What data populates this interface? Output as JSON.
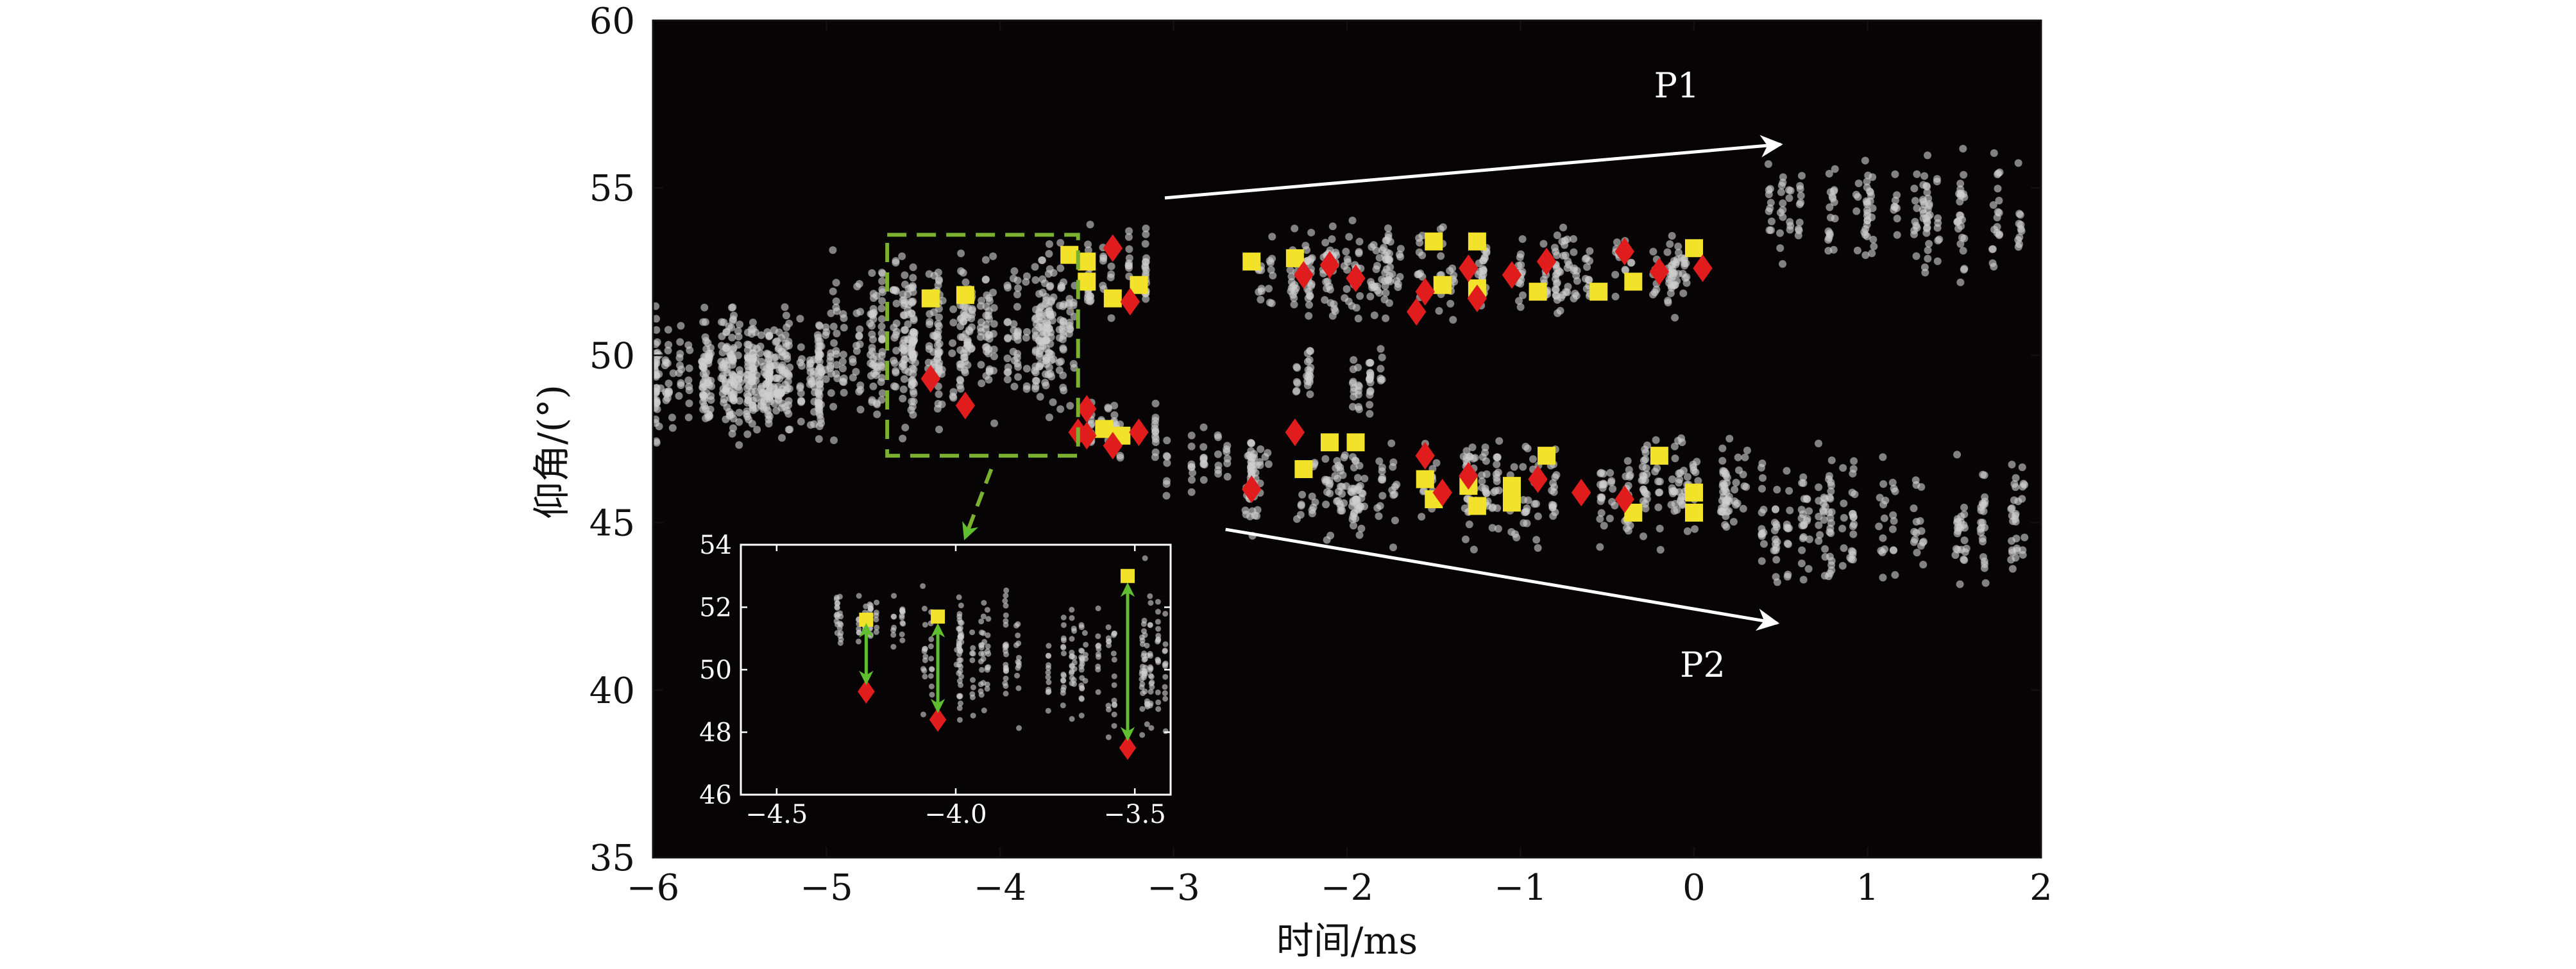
{
  "chart_data": [
    {
      "type": "scatter",
      "xlabel": "时间/ms",
      "ylabel": "仰角/(°)",
      "xlim": [
        -6,
        2
      ],
      "ylim": [
        35,
        60
      ],
      "xticks": [
        -6,
        -5,
        -4,
        -3,
        -2,
        -1,
        0,
        1,
        2
      ],
      "xtick_labels": [
        "−6",
        "−5",
        "−4",
        "−3",
        "−2",
        "−1",
        "0",
        "1",
        "2"
      ],
      "yticks": [
        35,
        40,
        45,
        50,
        55,
        60
      ],
      "ytick_labels": [
        "35",
        "40",
        "45",
        "50",
        "55",
        "60"
      ],
      "background": "#060404",
      "grid": false,
      "annotations": [
        {
          "text": "P1",
          "x": -0.1,
          "y": 57.7,
          "arrow_from": [
            -3.05,
            54.7
          ],
          "arrow_to": [
            0.5,
            56.3
          ]
        },
        {
          "text": "P2",
          "x": 0.05,
          "y": 40.4,
          "arrow_from": [
            -2.7,
            44.8
          ],
          "arrow_to": [
            0.48,
            42.0
          ]
        }
      ],
      "zoom_box": {
        "x": [
          -4.65,
          -3.55
        ],
        "y": [
          47.0,
          53.6
        ],
        "color": "#7bb030"
      },
      "series": [
        {
          "marker": "circle",
          "color": "#cfcfcf",
          "clusters": [
            {
              "x": [
                -6.0,
                -5.0
              ],
              "y": [
                46.8,
                52.0
              ],
              "count": 520
            },
            {
              "x": [
                -5.0,
                -4.2
              ],
              "y": [
                47.0,
                53.6
              ],
              "count": 320
            },
            {
              "x": [
                -4.2,
                -3.55
              ],
              "y": [
                47.5,
                53.8
              ],
              "count": 260
            },
            {
              "x": [
                -3.55,
                -3.1
              ],
              "y": [
                50.5,
                54.5
              ],
              "count": 60
            },
            {
              "x": [
                -3.55,
                -3.1
              ],
              "y": [
                46.5,
                49.0
              ],
              "count": 60
            },
            {
              "x": [
                -3.1,
                -2.5
              ],
              "y": [
                45.5,
                48.0
              ],
              "count": 50
            },
            {
              "x": [
                -2.6,
                -0.05
              ],
              "y": [
                50.8,
                54.2
              ],
              "count": 380
            },
            {
              "x": [
                -2.5,
                -1.7
              ],
              "y": [
                48.0,
                50.5
              ],
              "count": 60
            },
            {
              "x": [
                -2.6,
                0.3
              ],
              "y": [
                44.0,
                48.0
              ],
              "count": 460
            },
            {
              "x": [
                0.3,
                2.0
              ],
              "y": [
                52.0,
                56.5
              ],
              "count": 200
            },
            {
              "x": [
                0.3,
                2.0
              ],
              "y": [
                42.5,
                47.5
              ],
              "count": 240
            }
          ]
        },
        {
          "marker": "square",
          "color": "#f2e22a",
          "points": [
            [
              -4.4,
              51.7
            ],
            [
              -4.2,
              51.8
            ],
            [
              -3.6,
              53.0
            ],
            [
              -3.5,
              52.8
            ],
            [
              -3.5,
              52.2
            ],
            [
              -3.35,
              51.7
            ],
            [
              -3.2,
              52.1
            ],
            [
              -3.4,
              47.8
            ],
            [
              -3.3,
              47.6
            ],
            [
              -2.55,
              52.8
            ],
            [
              -2.3,
              52.9
            ],
            [
              -2.25,
              46.6
            ],
            [
              -2.1,
              47.4
            ],
            [
              -1.95,
              47.4
            ],
            [
              -1.5,
              53.4
            ],
            [
              -1.45,
              52.1
            ],
            [
              -1.55,
              46.3
            ],
            [
              -1.5,
              45.7
            ],
            [
              -1.25,
              53.4
            ],
            [
              -1.25,
              52.0
            ],
            [
              -1.3,
              46.1
            ],
            [
              -1.25,
              45.5
            ],
            [
              -1.05,
              46.1
            ],
            [
              -1.05,
              45.6
            ],
            [
              -0.9,
              51.9
            ],
            [
              -0.85,
              47.0
            ],
            [
              -0.55,
              51.9
            ],
            [
              -0.35,
              52.2
            ],
            [
              -0.35,
              45.3
            ],
            [
              -0.2,
              47.0
            ],
            [
              0.0,
              53.2
            ],
            [
              0.0,
              45.9
            ],
            [
              0.0,
              45.3
            ]
          ]
        },
        {
          "marker": "diamond",
          "color": "#e01c1c",
          "points": [
            [
              -4.4,
              49.3
            ],
            [
              -4.2,
              48.5
            ],
            [
              -3.35,
              53.2
            ],
            [
              -3.25,
              51.6
            ],
            [
              -3.55,
              47.7
            ],
            [
              -3.5,
              48.4
            ],
            [
              -3.5,
              47.6
            ],
            [
              -3.35,
              47.3
            ],
            [
              -3.2,
              47.7
            ],
            [
              -2.55,
              46.0
            ],
            [
              -2.3,
              47.7
            ],
            [
              -2.25,
              52.4
            ],
            [
              -2.1,
              52.7
            ],
            [
              -1.95,
              52.3
            ],
            [
              -1.6,
              51.3
            ],
            [
              -1.55,
              51.9
            ],
            [
              -1.55,
              47.0
            ],
            [
              -1.45,
              45.9
            ],
            [
              -1.3,
              52.6
            ],
            [
              -1.25,
              51.7
            ],
            [
              -1.3,
              46.4
            ],
            [
              -1.05,
              52.4
            ],
            [
              -0.85,
              52.8
            ],
            [
              -0.9,
              46.3
            ],
            [
              -0.65,
              45.9
            ],
            [
              -0.4,
              53.1
            ],
            [
              -0.4,
              45.7
            ],
            [
              -0.2,
              52.5
            ],
            [
              0.05,
              52.6
            ]
          ]
        }
      ]
    },
    {
      "type": "scatter",
      "xlim": [
        -4.6,
        -3.4
      ],
      "ylim": [
        46,
        54
      ],
      "xticks": [
        -4.5,
        -4.0,
        -3.5
      ],
      "xtick_labels": [
        "−4.5",
        "−4.0",
        "−3.5"
      ],
      "yticks": [
        46,
        48,
        50,
        52,
        54
      ],
      "ytick_labels": [
        "46",
        "48",
        "50",
        "52",
        "54"
      ],
      "background": "#060404",
      "grid": false,
      "arrows": [
        {
          "x": -4.25,
          "y": [
            49.6,
            51.4
          ],
          "color": "#5fbf2f"
        },
        {
          "x": -4.05,
          "y": [
            48.7,
            51.4
          ],
          "color": "#5fbf2f"
        },
        {
          "x": -3.52,
          "y": [
            47.8,
            52.7
          ],
          "color": "#5fbf2f"
        }
      ],
      "series": [
        {
          "marker": "circle",
          "color": "#cfcfcf",
          "clusters": [
            {
              "x": [
                -4.4,
                -4.1
              ],
              "y": [
                50.6,
                52.6
              ],
              "count": 70
            },
            {
              "x": [
                -4.1,
                -3.8
              ],
              "y": [
                47.5,
                53.5
              ],
              "count": 140
            },
            {
              "x": [
                -3.8,
                -3.6
              ],
              "y": [
                48.0,
                52.5
              ],
              "count": 80
            },
            {
              "x": [
                -3.6,
                -3.4
              ],
              "y": [
                46.3,
                53.8
              ],
              "count": 100
            }
          ]
        },
        {
          "marker": "square",
          "color": "#f2e22a",
          "points": [
            [
              -4.25,
              51.6
            ],
            [
              -4.05,
              51.7
            ],
            [
              -3.52,
              53.0
            ]
          ]
        },
        {
          "marker": "diamond",
          "color": "#e01c1c",
          "points": [
            [
              -4.25,
              49.3
            ],
            [
              -4.05,
              48.4
            ],
            [
              -3.52,
              47.5
            ]
          ]
        }
      ]
    }
  ]
}
